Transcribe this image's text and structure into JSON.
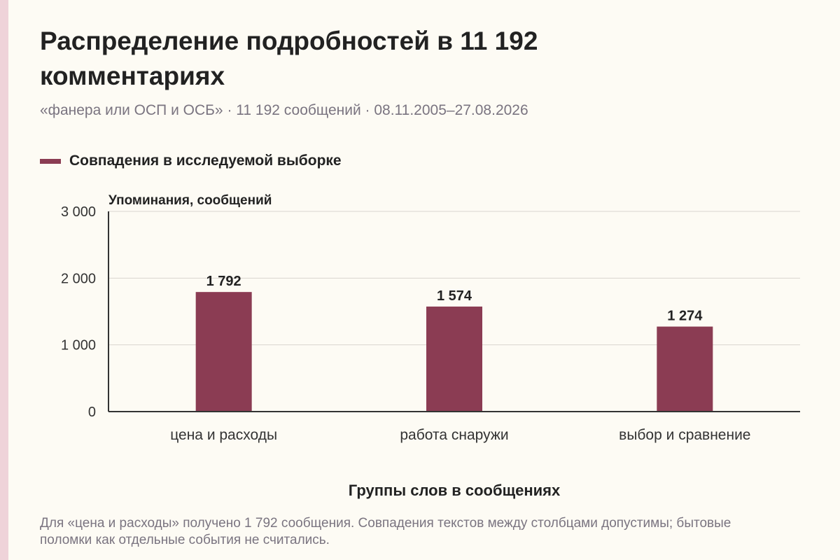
{
  "title": "Распределение подробностей в 11 192 комментариях",
  "subtitle": "«фанера или ОСП и ОСБ» · 11 192 сообщений · 08.11.2005–27.08.2026",
  "footnote": "Для «цена и расходы» получено 1 792 сообщения. Совпадения текстов между столбцами допустимы; бытовые поломки как отдельные события не считались.",
  "colors": {
    "bar": "#8b3c53",
    "accent_strip": "#efd3d9",
    "background": "#fdfbf4"
  },
  "chart_data": {
    "type": "bar",
    "categories": [
      "цена и расходы",
      "работа снаружи",
      "выбор и сравнение"
    ],
    "series": [
      {
        "name": "Совпадения в исследуемой выборке",
        "values": [
          1792,
          1574,
          1274
        ],
        "value_labels": [
          "1 792",
          "1 574",
          "1 274"
        ]
      }
    ],
    "xlabel": "Группы слов в сообщениях",
    "ylabel": "Упоминания, сообщений",
    "ylim": [
      0,
      3000
    ],
    "yticks": [
      0,
      1000,
      2000,
      3000
    ],
    "ytick_labels": [
      "0",
      "1 000",
      "2 000",
      "3 000"
    ],
    "grid": true,
    "legend_position": "top-left"
  }
}
